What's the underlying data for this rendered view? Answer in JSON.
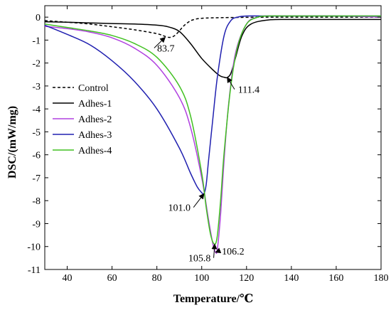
{
  "chart_data": {
    "type": "line",
    "xlabel": "Temperature/℃",
    "ylabel": "DSC/(mW/mg)",
    "xlim": [
      30,
      180
    ],
    "ylim": [
      -11,
      0.5
    ],
    "xticks": [
      40,
      60,
      80,
      100,
      120,
      140,
      160,
      180
    ],
    "yticks": [
      0,
      -1,
      -2,
      -3,
      -4,
      -5,
      -6,
      -7,
      -8,
      -9,
      -10,
      -11
    ],
    "grid": false,
    "legend_position": "left-middle",
    "series": [
      {
        "name": "Control",
        "color": "#000000",
        "dash": true,
        "x": [
          30,
          40,
          50,
          60,
          70,
          80,
          84,
          86,
          88,
          90,
          92,
          94,
          96,
          100,
          110,
          130,
          150,
          180
        ],
        "y": [
          -0.15,
          -0.22,
          -0.3,
          -0.42,
          -0.55,
          -0.72,
          -0.85,
          -0.88,
          -0.8,
          -0.6,
          -0.38,
          -0.22,
          -0.12,
          -0.05,
          -0.02,
          0,
          0,
          0
        ]
      },
      {
        "name": "Adhes-1",
        "color": "#000000",
        "dash": false,
        "x": [
          30,
          40,
          50,
          60,
          70,
          80,
          85,
          90,
          95,
          100,
          105,
          108,
          110,
          111.4,
          113,
          115,
          118,
          122,
          130,
          140,
          160,
          180
        ],
        "y": [
          -0.2,
          -0.22,
          -0.25,
          -0.28,
          -0.3,
          -0.35,
          -0.42,
          -0.62,
          -1.15,
          -1.8,
          -2.3,
          -2.55,
          -2.62,
          -2.63,
          -2.45,
          -1.8,
          -0.8,
          -0.3,
          -0.12,
          -0.1,
          -0.1,
          -0.1
        ]
      },
      {
        "name": "Adhes-2",
        "color": "#b040e0",
        "dash": false,
        "x": [
          30,
          40,
          50,
          60,
          70,
          80,
          90,
          95,
          100,
          103,
          105,
          106.2,
          107,
          108.5,
          110,
          112,
          115,
          120,
          125,
          130,
          140,
          160,
          180
        ],
        "y": [
          -0.4,
          -0.5,
          -0.65,
          -0.9,
          -1.35,
          -2.1,
          -3.5,
          -4.8,
          -7.0,
          -8.8,
          -9.9,
          -10.25,
          -10.1,
          -8.5,
          -6.2,
          -3.8,
          -1.6,
          -0.3,
          0,
          0.05,
          0.05,
          0.05,
          0
        ]
      },
      {
        "name": "Adhes-3",
        "color": "#2020b0",
        "dash": false,
        "x": [
          30,
          40,
          50,
          60,
          70,
          80,
          90,
          95,
          98,
          100,
          101,
          102,
          103,
          105,
          107,
          110,
          113,
          116,
          120,
          130,
          140,
          160,
          180
        ],
        "y": [
          -0.35,
          -0.75,
          -1.2,
          -1.9,
          -2.8,
          -4.0,
          -5.7,
          -6.8,
          -7.4,
          -7.65,
          -7.7,
          -7.3,
          -6.3,
          -4.4,
          -2.6,
          -0.8,
          -0.15,
          0,
          0.05,
          0.05,
          0.05,
          0.05,
          0.05
        ]
      },
      {
        "name": "Adhes-4",
        "color": "#40c020",
        "dash": false,
        "x": [
          30,
          40,
          50,
          60,
          70,
          80,
          90,
          95,
          100,
          102,
          104,
          105.8,
          107,
          108.5,
          110,
          113,
          116,
          120,
          125,
          130,
          140,
          160,
          180
        ],
        "y": [
          -0.3,
          -0.45,
          -0.6,
          -0.8,
          -1.15,
          -1.75,
          -3.0,
          -4.3,
          -6.8,
          -8.3,
          -9.5,
          -9.9,
          -9.5,
          -7.9,
          -5.9,
          -3.0,
          -1.3,
          -0.3,
          0,
          0.05,
          0.05,
          0.05,
          0.05
        ]
      }
    ],
    "annotations": [
      {
        "text": "83.7",
        "x": 83.7,
        "y": -0.88,
        "tx": 84,
        "ty": -1.5
      },
      {
        "text": "111.4",
        "x": 111.4,
        "y": -2.63,
        "tx": 121,
        "ty": -3.3
      },
      {
        "text": "101.0",
        "x": 101.0,
        "y": -7.7,
        "tx": 90,
        "ty": -8.45
      },
      {
        "text": "105.8",
        "x": 105.8,
        "y": -9.9,
        "tx": 99,
        "ty": -10.65
      },
      {
        "text": "106.2",
        "x": 106.2,
        "y": -10.25,
        "tx": 114,
        "ty": -10.35
      }
    ]
  }
}
